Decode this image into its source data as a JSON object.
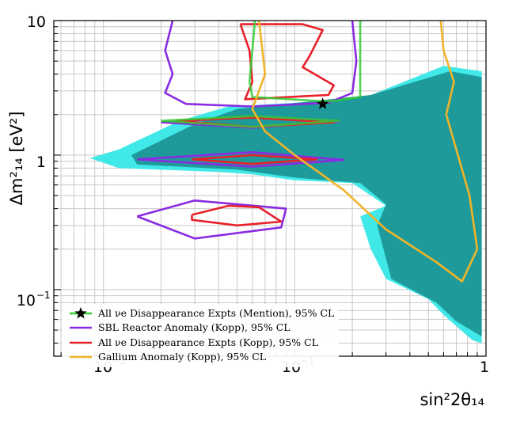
{
  "chart_data": {
    "type": "contour",
    "xlabel": "sin²2θ₁₄",
    "ylabel": "Δm²₁₄ [eV²]",
    "xscale": "log",
    "yscale": "log",
    "xlim": [
      0.0055,
      1
    ],
    "ylim": [
      0.032,
      10
    ],
    "grid": true,
    "x_tick_labels": {
      "m2": "10",
      "m1": "10",
      "one": "1"
    },
    "y_tick_labels": {
      "m1": "10",
      "one": "1",
      "ten": "10"
    },
    "legend": {
      "position": "bottom-left",
      "entries": [
        {
          "label": "All νe Disappearance Expts (Mention), 95% CL",
          "color": "#32cd32",
          "marker": "star"
        },
        {
          "label": "SBL Reactor Anomaly (Kopp), 95% CL",
          "color": "#8a2be2"
        },
        {
          "label": "All νe Disappearance Expts (Kopp), 95% CL",
          "color": "#e8202a"
        },
        {
          "label": "Gallium Anomaly (Kopp), 95% CL",
          "color": "#f0b429"
        }
      ]
    },
    "best_fit_point": {
      "x": 0.14,
      "y": 2.4
    },
    "series": [
      {
        "kind": "excluded-region-95",
        "color": "#40e8e8",
        "polygon": [
          [
            0.95,
            4.2
          ],
          [
            0.6,
            4.6
          ],
          [
            0.22,
            2.6
          ],
          [
            0.045,
            2.3
          ],
          [
            0.025,
            1.8
          ],
          [
            0.012,
            1.1
          ],
          [
            0.0085,
            0.95
          ],
          [
            0.012,
            0.8
          ],
          [
            0.04,
            0.75
          ],
          [
            0.06,
            0.72
          ],
          [
            0.1,
            0.65
          ],
          [
            0.2,
            0.62
          ],
          [
            0.3,
            0.42
          ],
          [
            0.22,
            0.35
          ],
          [
            0.25,
            0.2
          ],
          [
            0.3,
            0.12
          ],
          [
            0.5,
            0.085
          ],
          [
            0.6,
            0.065
          ],
          [
            0.85,
            0.042
          ],
          [
            0.95,
            0.04
          ]
        ]
      },
      {
        "kind": "excluded-region-90",
        "color": "#1f9a9a",
        "polygon": [
          [
            0.95,
            3.8
          ],
          [
            0.65,
            4.2
          ],
          [
            0.25,
            2.8
          ],
          [
            0.05,
            2.2
          ],
          [
            0.03,
            1.7
          ],
          [
            0.014,
            1.0
          ],
          [
            0.015,
            0.85
          ],
          [
            0.05,
            0.78
          ],
          [
            0.1,
            0.68
          ],
          [
            0.22,
            0.62
          ],
          [
            0.3,
            0.43
          ],
          [
            0.27,
            0.3
          ],
          [
            0.32,
            0.12
          ],
          [
            0.55,
            0.08
          ],
          [
            0.7,
            0.058
          ],
          [
            0.9,
            0.047
          ],
          [
            0.95,
            0.045
          ]
        ]
      },
      {
        "kind": "contour",
        "name": "SBL Reactor Anomaly (Kopp)",
        "color": "#8a2be2",
        "polylines": [
          [
            [
              0.023,
              10
            ],
            [
              0.021,
              6
            ],
            [
              0.023,
              4
            ],
            [
              0.021,
              2.9
            ],
            [
              0.027,
              2.4
            ],
            [
              0.06,
              2.3
            ],
            [
              0.15,
              2.45
            ],
            [
              0.2,
              2.9
            ],
            [
              0.21,
              5
            ],
            [
              0.2,
              10
            ]
          ],
          [
            [
              0.02,
              1.75
            ],
            [
              0.06,
              1.92
            ],
            [
              0.17,
              1.78
            ],
            [
              0.06,
              1.6
            ],
            [
              0.02,
              1.75
            ]
          ],
          [
            [
              0.015,
              0.93
            ],
            [
              0.06,
              1.05
            ],
            [
              0.18,
              0.92
            ],
            [
              0.06,
              0.82
            ],
            [
              0.015,
              0.93
            ]
          ],
          [
            [
              0.015,
              0.35
            ],
            [
              0.03,
              0.46
            ],
            [
              0.09,
              0.4
            ],
            [
              0.085,
              0.29
            ],
            [
              0.03,
              0.24
            ],
            [
              0.015,
              0.35
            ]
          ]
        ]
      },
      {
        "kind": "contour",
        "name": "All νe Disappearance Expts (Kopp)",
        "color": "#e8202a",
        "polylines": [
          [
            [
              0.052,
              9.4
            ],
            [
              0.11,
              9.4
            ],
            [
              0.14,
              8.5
            ],
            [
              0.12,
              5.5
            ],
            [
              0.11,
              4.5
            ],
            [
              0.16,
              3.3
            ],
            [
              0.15,
              2.8
            ],
            [
              0.055,
              2.6
            ],
            [
              0.06,
              3.5
            ],
            [
              0.058,
              6
            ],
            [
              0.052,
              9.4
            ]
          ],
          [
            [
              0.024,
              1.8
            ],
            [
              0.06,
              1.9
            ],
            [
              0.16,
              1.75
            ],
            [
              0.06,
              1.62
            ],
            [
              0.024,
              1.8
            ]
          ],
          [
            [
              0.029,
              0.93
            ],
            [
              0.06,
              1.0
            ],
            [
              0.13,
              0.93
            ],
            [
              0.06,
              0.86
            ],
            [
              0.029,
              0.93
            ]
          ],
          [
            [
              0.029,
              0.36
            ],
            [
              0.045,
              0.42
            ],
            [
              0.065,
              0.41
            ],
            [
              0.085,
              0.32
            ],
            [
              0.05,
              0.3
            ],
            [
              0.029,
              0.33
            ],
            [
              0.029,
              0.36
            ]
          ]
        ]
      },
      {
        "kind": "contour",
        "name": "All νe Disappearance Expts (Mention)",
        "color": "#32cd32",
        "polylines": [
          [
            [
              0.062,
              10
            ],
            [
              0.058,
              3.5
            ],
            [
              0.06,
              2.7
            ],
            [
              0.15,
              2.5
            ],
            [
              0.22,
              2.7
            ],
            [
              0.22,
              10
            ]
          ],
          [
            [
              0.02,
              1.8
            ],
            [
              0.06,
              1.95
            ],
            [
              0.17,
              1.8
            ],
            [
              0.06,
              1.62
            ],
            [
              0.02,
              1.8
            ]
          ]
        ]
      },
      {
        "kind": "contour",
        "name": "Gallium Anomaly (Kopp)",
        "color": "#f0b429",
        "polylines": [
          [
            [
              0.065,
              10
            ],
            [
              0.07,
              4
            ],
            [
              0.06,
              2.2
            ],
            [
              0.07,
              1.5
            ],
            [
              0.1,
              1.0
            ],
            [
              0.18,
              0.55
            ],
            [
              0.3,
              0.28
            ],
            [
              0.55,
              0.16
            ],
            [
              0.75,
              0.115
            ],
            [
              0.9,
              0.2
            ],
            [
              0.82,
              0.5
            ],
            [
              0.62,
              2
            ],
            [
              0.68,
              3.5
            ],
            [
              0.6,
              6
            ],
            [
              0.58,
              10
            ]
          ]
        ]
      }
    ]
  }
}
